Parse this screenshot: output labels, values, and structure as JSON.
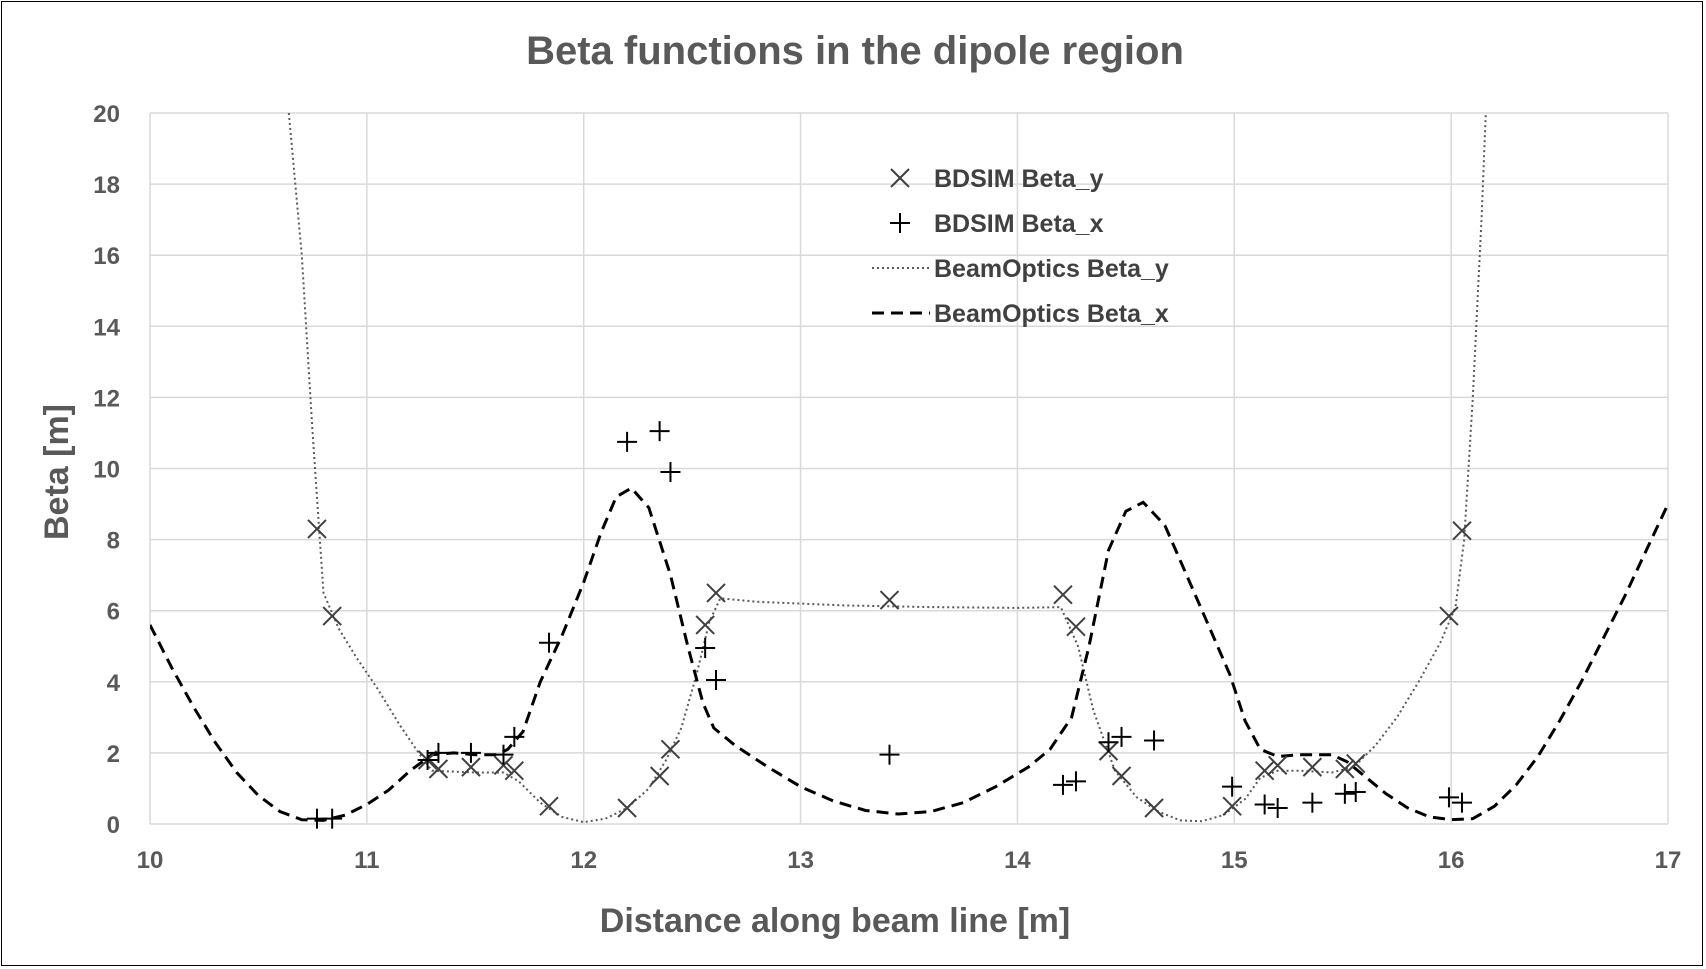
{
  "chart_data": {
    "type": "scatter",
    "title": "Beta functions in the dipole region",
    "xlabel": "Distance along beam line [m]",
    "ylabel": "Beta [m]",
    "xlim": [
      10,
      17
    ],
    "ylim": [
      0,
      20
    ],
    "xticks": [
      10,
      11,
      12,
      13,
      14,
      15,
      16,
      17
    ],
    "yticks": [
      0,
      2,
      4,
      6,
      8,
      10,
      12,
      14,
      16,
      18,
      20
    ],
    "grid": true,
    "legend_position": "top-center",
    "series": [
      {
        "name": "BDSIM Beta_y",
        "kind": "scatter",
        "marker": "x",
        "points": [
          [
            10.77,
            8.3
          ],
          [
            10.84,
            5.85
          ],
          [
            11.28,
            1.8
          ],
          [
            11.33,
            1.55
          ],
          [
            11.48,
            1.6
          ],
          [
            11.63,
            1.65
          ],
          [
            11.68,
            1.5
          ],
          [
            11.84,
            0.5
          ],
          [
            12.2,
            0.45
          ],
          [
            12.35,
            1.35
          ],
          [
            12.4,
            2.1
          ],
          [
            12.56,
            5.6
          ],
          [
            12.61,
            6.5
          ],
          [
            13.41,
            6.3
          ],
          [
            14.21,
            6.45
          ],
          [
            14.27,
            5.55
          ],
          [
            14.42,
            2.05
          ],
          [
            14.48,
            1.35
          ],
          [
            14.63,
            0.45
          ],
          [
            14.99,
            0.5
          ],
          [
            15.14,
            1.5
          ],
          [
            15.2,
            1.65
          ],
          [
            15.36,
            1.6
          ],
          [
            15.51,
            1.55
          ],
          [
            15.56,
            1.7
          ],
          [
            15.99,
            5.85
          ],
          [
            16.05,
            8.25
          ]
        ]
      },
      {
        "name": "BDSIM Beta_x",
        "kind": "scatter",
        "marker": "+",
        "points": [
          [
            10.77,
            0.15
          ],
          [
            10.84,
            0.15
          ],
          [
            11.28,
            1.8
          ],
          [
            11.33,
            2.0
          ],
          [
            11.48,
            2.0
          ],
          [
            11.63,
            1.95
          ],
          [
            11.68,
            2.45
          ],
          [
            11.84,
            5.1
          ],
          [
            12.2,
            10.75
          ],
          [
            12.35,
            11.05
          ],
          [
            12.4,
            9.9
          ],
          [
            12.56,
            4.95
          ],
          [
            12.61,
            4.05
          ],
          [
            13.41,
            1.95
          ],
          [
            14.21,
            1.1
          ],
          [
            14.27,
            1.2
          ],
          [
            14.42,
            2.3
          ],
          [
            14.48,
            2.45
          ],
          [
            14.63,
            2.35
          ],
          [
            14.99,
            1.05
          ],
          [
            15.14,
            0.55
          ],
          [
            15.2,
            0.45
          ],
          [
            15.36,
            0.6
          ],
          [
            15.51,
            0.85
          ],
          [
            15.56,
            0.9
          ],
          [
            15.99,
            0.75
          ],
          [
            16.05,
            0.6
          ]
        ]
      },
      {
        "name": "BeamOptics Beta_y",
        "kind": "line",
        "style": "dotted",
        "points": [
          [
            10.64,
            20.0
          ],
          [
            10.7,
            16.0
          ],
          [
            10.75,
            11.0
          ],
          [
            10.8,
            6.5
          ],
          [
            10.87,
            5.5
          ],
          [
            10.95,
            4.7
          ],
          [
            11.05,
            3.8
          ],
          [
            11.15,
            2.8
          ],
          [
            11.25,
            1.9
          ],
          [
            11.3,
            1.5
          ],
          [
            11.5,
            1.45
          ],
          [
            11.63,
            1.45
          ],
          [
            11.7,
            1.2
          ],
          [
            11.8,
            0.6
          ],
          [
            11.9,
            0.2
          ],
          [
            12.0,
            0.05
          ],
          [
            12.1,
            0.15
          ],
          [
            12.2,
            0.45
          ],
          [
            12.3,
            1.0
          ],
          [
            12.38,
            1.8
          ],
          [
            12.45,
            2.7
          ],
          [
            12.52,
            4.2
          ],
          [
            12.58,
            5.7
          ],
          [
            12.63,
            6.35
          ],
          [
            12.8,
            6.25
          ],
          [
            13.2,
            6.15
          ],
          [
            13.6,
            6.1
          ],
          [
            14.0,
            6.08
          ],
          [
            14.2,
            6.1
          ],
          [
            14.28,
            5.0
          ],
          [
            14.35,
            3.2
          ],
          [
            14.45,
            1.5
          ],
          [
            14.55,
            0.75
          ],
          [
            14.65,
            0.35
          ],
          [
            14.75,
            0.1
          ],
          [
            14.85,
            0.08
          ],
          [
            14.95,
            0.25
          ],
          [
            15.05,
            0.7
          ],
          [
            15.12,
            1.3
          ],
          [
            15.2,
            1.5
          ],
          [
            15.3,
            1.5
          ],
          [
            15.45,
            1.45
          ],
          [
            15.55,
            1.6
          ],
          [
            15.65,
            2.2
          ],
          [
            15.75,
            3.0
          ],
          [
            15.85,
            4.0
          ],
          [
            15.95,
            5.1
          ],
          [
            16.02,
            6.1
          ],
          [
            16.06,
            8.0
          ],
          [
            16.1,
            12.0
          ],
          [
            16.14,
            17.0
          ],
          [
            16.16,
            20.0
          ]
        ]
      },
      {
        "name": "BeamOptics Beta_x",
        "kind": "line",
        "style": "dashed",
        "points": [
          [
            10.0,
            5.6
          ],
          [
            10.1,
            4.4
          ],
          [
            10.2,
            3.3
          ],
          [
            10.3,
            2.3
          ],
          [
            10.4,
            1.45
          ],
          [
            10.5,
            0.8
          ],
          [
            10.6,
            0.35
          ],
          [
            10.7,
            0.12
          ],
          [
            10.8,
            0.1
          ],
          [
            10.9,
            0.25
          ],
          [
            11.0,
            0.55
          ],
          [
            11.1,
            0.95
          ],
          [
            11.2,
            1.5
          ],
          [
            11.3,
            1.95
          ],
          [
            11.4,
            2.0
          ],
          [
            11.5,
            1.95
          ],
          [
            11.6,
            1.95
          ],
          [
            11.65,
            2.1
          ],
          [
            11.72,
            2.6
          ],
          [
            11.8,
            4.0
          ],
          [
            11.9,
            5.3
          ],
          [
            12.0,
            6.8
          ],
          [
            12.08,
            8.2
          ],
          [
            12.15,
            9.2
          ],
          [
            12.22,
            9.45
          ],
          [
            12.3,
            8.9
          ],
          [
            12.4,
            7.0
          ],
          [
            12.48,
            5.0
          ],
          [
            12.55,
            3.4
          ],
          [
            12.6,
            2.7
          ],
          [
            12.7,
            2.2
          ],
          [
            12.85,
            1.6
          ],
          [
            13.0,
            1.05
          ],
          [
            13.15,
            0.65
          ],
          [
            13.3,
            0.38
          ],
          [
            13.45,
            0.28
          ],
          [
            13.6,
            0.35
          ],
          [
            13.75,
            0.6
          ],
          [
            13.9,
            1.05
          ],
          [
            14.05,
            1.6
          ],
          [
            14.15,
            2.1
          ],
          [
            14.25,
            3.0
          ],
          [
            14.33,
            5.0
          ],
          [
            14.42,
            7.7
          ],
          [
            14.5,
            8.8
          ],
          [
            14.58,
            9.05
          ],
          [
            14.68,
            8.4
          ],
          [
            14.78,
            7.0
          ],
          [
            14.88,
            5.6
          ],
          [
            14.98,
            4.2
          ],
          [
            15.05,
            2.9
          ],
          [
            15.12,
            2.1
          ],
          [
            15.2,
            1.9
          ],
          [
            15.3,
            1.95
          ],
          [
            15.45,
            1.95
          ],
          [
            15.52,
            1.75
          ],
          [
            15.6,
            1.35
          ],
          [
            15.7,
            0.85
          ],
          [
            15.8,
            0.45
          ],
          [
            15.9,
            0.2
          ],
          [
            16.0,
            0.12
          ],
          [
            16.1,
            0.15
          ],
          [
            16.2,
            0.5
          ],
          [
            16.3,
            1.1
          ],
          [
            16.4,
            1.9
          ],
          [
            16.5,
            2.9
          ],
          [
            16.6,
            4.0
          ],
          [
            16.7,
            5.2
          ],
          [
            16.8,
            6.4
          ],
          [
            16.9,
            7.7
          ],
          [
            17.0,
            9.0
          ]
        ]
      }
    ]
  }
}
